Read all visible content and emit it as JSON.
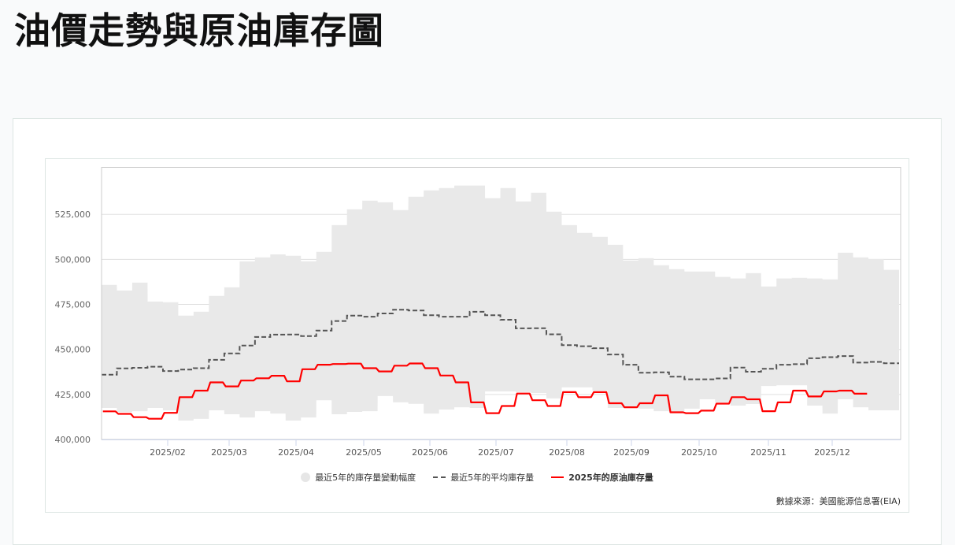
{
  "page": {
    "title": "油價走勢與原油庫存圖"
  },
  "legend": {
    "range_label": "最近5年的庫存量變動幅度",
    "avg_label": "最近5年的平均庫存量",
    "current_label": "2025年的原油庫存量"
  },
  "source_text": "數據來源：美國能源信息署(EIA)",
  "colors": {
    "band": "#e9e9e9",
    "avg": "#555555",
    "current": "#ff0000",
    "grid": "#e0e0e0",
    "axis": "#ccd6eb"
  },
  "chart_data": {
    "type": "line",
    "title": "油價走勢與原油庫存圖",
    "xlabel": "",
    "ylabel": "",
    "ylim": [
      400000,
      550000
    ],
    "yticks": [
      400000,
      425000,
      450000,
      475000,
      500000,
      525000
    ],
    "ytick_labels": [
      "400,000",
      "425,000",
      "450,000",
      "475,000",
      "500,000",
      "525,000"
    ],
    "xticks": [
      "2025/02",
      "2025/03",
      "2025/04",
      "2025/05",
      "2025/06",
      "2025/07",
      "2025/08",
      "2025/09",
      "2025/10",
      "2025/11",
      "2025/12"
    ],
    "x_unit": "week_of_year",
    "grid": true,
    "legend_position": "bottom",
    "series": [
      {
        "name": "最近5年的庫存量變動幅度",
        "type": "arearange",
        "weeks": [
          1,
          2,
          3,
          4,
          5,
          6,
          7,
          8,
          9,
          10,
          11,
          12,
          13,
          14,
          15,
          16,
          17,
          18,
          19,
          20,
          21,
          22,
          23,
          24,
          25,
          26,
          27,
          28,
          29,
          30,
          31,
          32,
          33,
          34,
          35,
          36,
          37,
          38,
          39,
          40,
          41,
          42,
          43,
          44,
          45,
          46,
          47,
          48,
          49,
          50,
          51,
          52
        ],
        "high": [
          485800,
          482700,
          487100,
          476600,
          476200,
          468800,
          471000,
          479700,
          484500,
          498900,
          501100,
          502800,
          502000,
          499000,
          504200,
          519000,
          527800,
          532600,
          531700,
          527400,
          534800,
          538300,
          539600,
          541000,
          541000,
          534000,
          539600,
          532200,
          537000,
          526500,
          519000,
          514700,
          512500,
          508100,
          499400,
          500700,
          496800,
          494600,
          493300,
          493300,
          490300,
          489400,
          492400,
          485000,
          489400,
          489800,
          489400,
          488900,
          503700,
          501100,
          500200,
          494200
        ],
        "low": [
          417500,
          415300,
          415700,
          417500,
          416200,
          410500,
          411400,
          416200,
          414000,
          412200,
          415700,
          414400,
          410500,
          412200,
          421800,
          414000,
          415300,
          415700,
          424100,
          420600,
          419800,
          414400,
          416600,
          417900,
          417500,
          426700,
          426700,
          426300,
          425800,
          422800,
          428900,
          428900,
          427100,
          417500,
          417500,
          417100,
          415700,
          414800,
          417100,
          422300,
          420600,
          418800,
          419700,
          429700,
          430100,
          430100,
          418800,
          414400,
          422300,
          417900,
          416200,
          416200
        ]
      },
      {
        "name": "最近5年的平均庫存量",
        "type": "line",
        "style": "dashed",
        "weeks": [
          1,
          2,
          3,
          4,
          5,
          6,
          7,
          8,
          9,
          10,
          11,
          12,
          13,
          14,
          15,
          16,
          17,
          18,
          19,
          20,
          21,
          22,
          23,
          24,
          25,
          26,
          27,
          28,
          29,
          30,
          31,
          32,
          33,
          34,
          35,
          36,
          37,
          38,
          39,
          40,
          41,
          42,
          43,
          44,
          45,
          46,
          47,
          48,
          49,
          50,
          51,
          52
        ],
        "values": [
          436000,
          439500,
          439800,
          440400,
          438000,
          438800,
          439600,
          444200,
          447800,
          452200,
          456900,
          458200,
          458300,
          457400,
          460500,
          465800,
          468800,
          468200,
          470000,
          472100,
          471600,
          469000,
          468200,
          468200,
          470900,
          469000,
          466500,
          461700,
          461800,
          458400,
          452400,
          451800,
          450700,
          447200,
          441500,
          437100,
          437300,
          434900,
          433400,
          433400,
          433900,
          439900,
          437600,
          439300,
          441500,
          441800,
          445100,
          445700,
          446300,
          442700,
          443100,
          442300
        ]
      },
      {
        "name": "2025年的原油庫存量",
        "type": "line",
        "style": "solid",
        "weeks": [
          1,
          2,
          3,
          4,
          5,
          6,
          7,
          8,
          9,
          10,
          11,
          12,
          13,
          14,
          15,
          16,
          17,
          18,
          19,
          20,
          21,
          22,
          23,
          24,
          25,
          26,
          27,
          28,
          29,
          30,
          31,
          32,
          33,
          34,
          35,
          36,
          37,
          38,
          39,
          40,
          41,
          42,
          43,
          44,
          45,
          46,
          47,
          48,
          49,
          50
        ],
        "values": [
          415600,
          414200,
          412400,
          411500,
          414800,
          423500,
          427100,
          431700,
          429500,
          432700,
          434000,
          435400,
          432300,
          439000,
          441500,
          441900,
          442100,
          439600,
          437800,
          441000,
          442200,
          439600,
          435500,
          431700,
          420600,
          414600,
          418600,
          425500,
          421800,
          418600,
          426300,
          423500,
          426300,
          420100,
          417900,
          420100,
          424500,
          415100,
          414600,
          416000,
          419900,
          423500,
          422300,
          415700,
          420600,
          427100,
          423900,
          426700,
          427100,
          425400
        ]
      }
    ]
  }
}
